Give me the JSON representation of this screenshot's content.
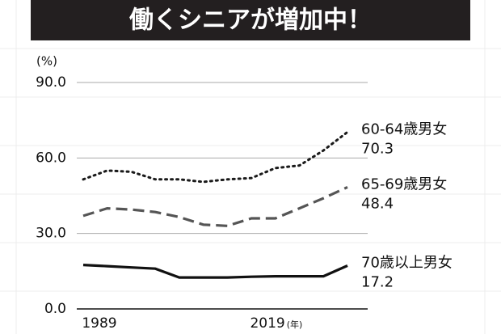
{
  "chart_data": {
    "type": "line",
    "title": "働くシニアが増加中！",
    "y_unit_label": "(%)",
    "x_unit_label": "(年)",
    "categories": [
      "1989",
      null,
      null,
      null,
      null,
      null,
      null,
      "2019",
      null,
      null,
      null,
      null
    ],
    "ylim": [
      0,
      90
    ],
    "yticks": [
      {
        "value": 0,
        "label": "0.0"
      },
      {
        "value": 30,
        "label": "30.0"
      },
      {
        "value": 60,
        "label": "60.0"
      },
      {
        "value": 90,
        "label": "90.0"
      }
    ],
    "grid": true,
    "series": [
      {
        "name": "60-64歳男女",
        "end_label": "70.3",
        "color": "#1a1a1a",
        "dash": "dotted",
        "values": [
          51.5,
          55,
          54.5,
          51.5,
          51.5,
          50.5,
          51.5,
          52,
          56,
          57,
          63,
          70.3
        ]
      },
      {
        "name": "65-69歳男女",
        "end_label": "48.4",
        "color": "#555555",
        "dash": "dashed",
        "values": [
          37,
          40,
          39.5,
          38.5,
          36.5,
          33.5,
          33,
          36,
          36,
          40,
          44,
          48.4
        ]
      },
      {
        "name": "70歳以上男女",
        "end_label": "17.2",
        "color": "#111111",
        "dash": "solid",
        "values": [
          17.5,
          17,
          16.5,
          16,
          12.5,
          12.5,
          12.5,
          12.8,
          13,
          13,
          13,
          17.2
        ]
      }
    ]
  }
}
